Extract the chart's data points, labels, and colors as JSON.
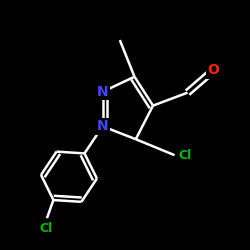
{
  "background_color": "#000000",
  "bond_color": "#ffffff",
  "N_color": "#4444ff",
  "O_color": "#ff2200",
  "Cl_color": "#00bb00",
  "C_color": "#ffffff",
  "bond_lw": 1.8,
  "figsize": [
    2.5,
    2.5
  ],
  "dpi": 100,
  "xlim": [
    -2.6,
    3.2
  ],
  "ylim": [
    -2.5,
    2.8
  ],
  "font_size_N": 10,
  "font_size_O": 10,
  "font_size_Cl": 9
}
